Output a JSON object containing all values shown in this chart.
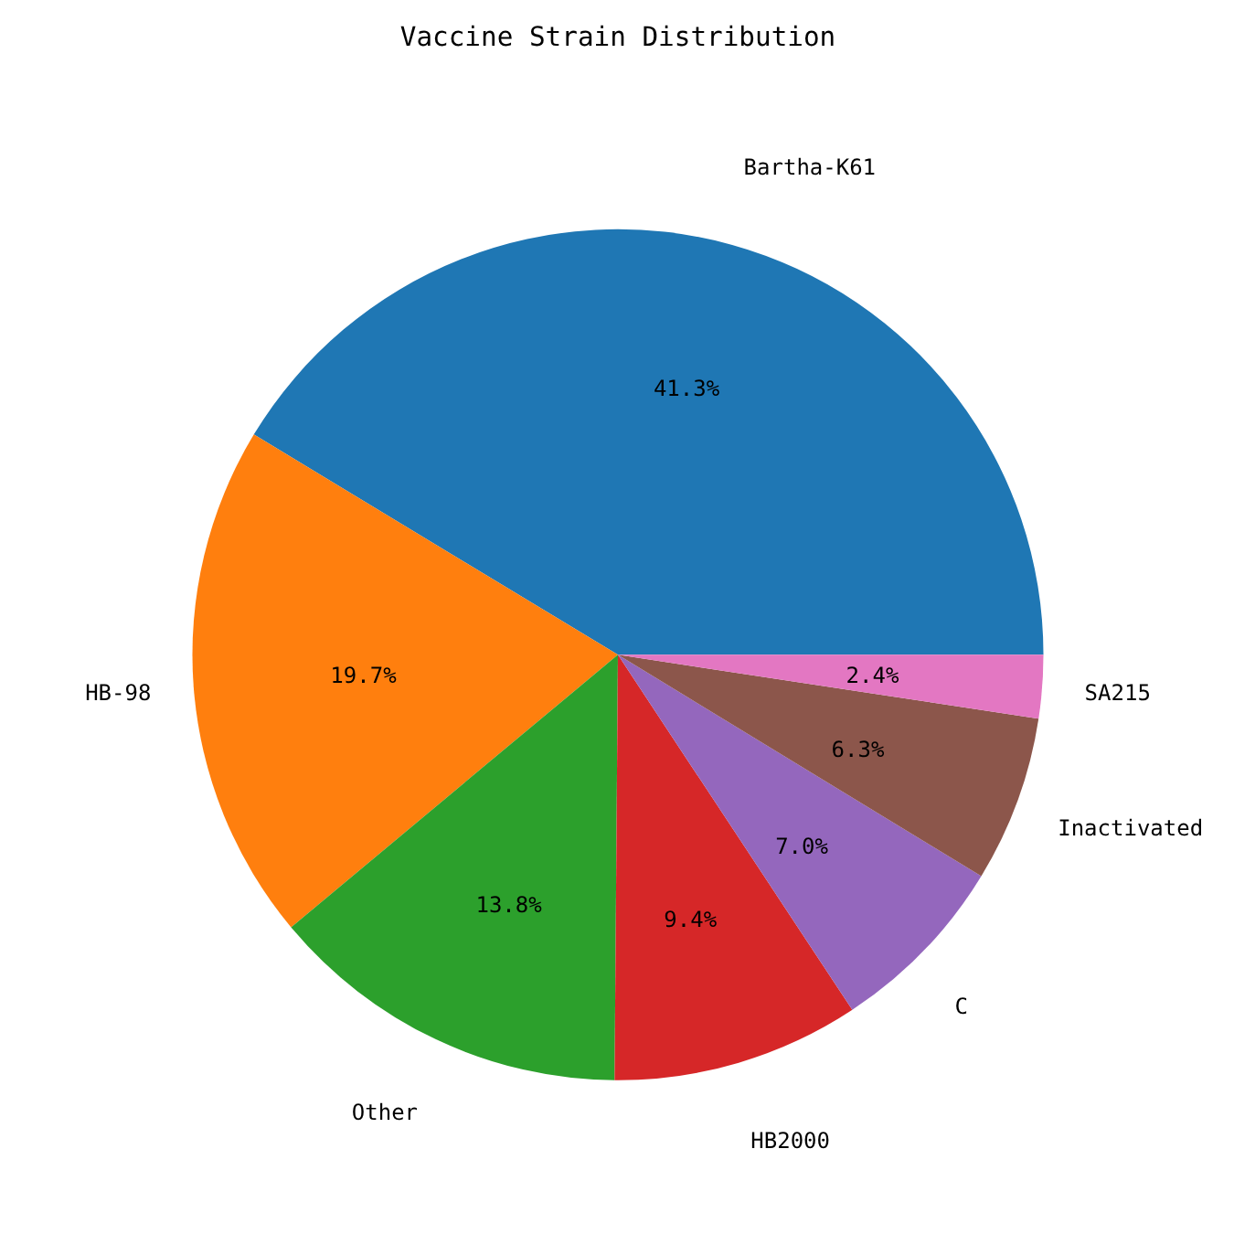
{
  "chart_data": {
    "type": "pie",
    "title": "Vaccine Strain Distribution",
    "categories": [
      "Bartha-K61",
      "HB-98",
      "Other",
      "HB2000",
      "C",
      "Inactivated",
      "SA215"
    ],
    "values": [
      41.3,
      19.7,
      13.8,
      9.4,
      7.0,
      6.3,
      2.4
    ],
    "colors": [
      "#1f77b4",
      "#ff7f0e",
      "#2ca02c",
      "#d62728",
      "#9467bd",
      "#8c564b",
      "#e377c2"
    ],
    "value_labels": [
      "41.3%",
      "19.7%",
      "13.8%",
      "9.4%",
      "7.0%",
      "6.3%",
      "2.4%"
    ]
  }
}
